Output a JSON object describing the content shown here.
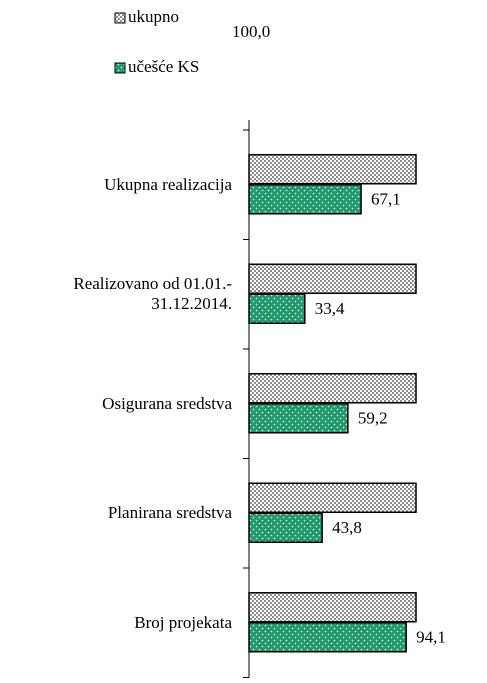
{
  "chart_data": {
    "type": "hbar",
    "categories": [
      "Ukupna realizacija",
      "Realizovano od 01.01.-\n31.12.2014.",
      "Osigurana sredstva",
      "Planirana sredstva",
      "Broj projekata"
    ],
    "series": [
      {
        "name": "ukupno",
        "color": "#a0a0a0",
        "values": [
          100,
          100,
          100,
          100,
          100
        ],
        "value_labels": [
          "100,0",
          null,
          null,
          null,
          null
        ]
      },
      {
        "name": "učešće KS",
        "color": "#1f9a6a",
        "values": [
          67.1,
          33.4,
          59.2,
          43.8,
          94.1
        ],
        "value_labels": [
          "67,1",
          "33,4",
          "59,2",
          "43,8",
          "94,1"
        ]
      }
    ],
    "xlim": [
      0,
      100
    ]
  }
}
